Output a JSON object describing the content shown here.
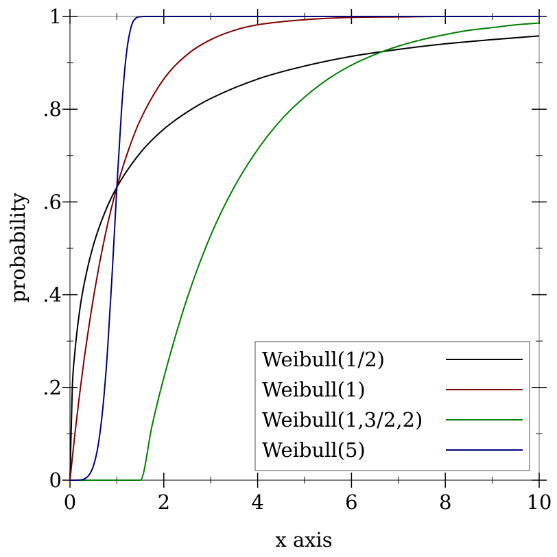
{
  "chart_data": {
    "type": "line",
    "title": "",
    "xlabel": "x axis",
    "ylabel": "probability",
    "xlim": [
      0,
      10
    ],
    "ylim": [
      0,
      1
    ],
    "grid": false,
    "legend_position": "bottom-right",
    "x_ticks": [
      {
        "value": 0,
        "label": "0"
      },
      {
        "value": 2,
        "label": "2"
      },
      {
        "value": 4,
        "label": "4"
      },
      {
        "value": 6,
        "label": "6"
      },
      {
        "value": 8,
        "label": "8"
      },
      {
        "value": 10,
        "label": "10"
      }
    ],
    "y_ticks": [
      {
        "value": 0,
        "label": "0"
      },
      {
        "value": 0.2,
        "label": ".2"
      },
      {
        "value": 0.4,
        "label": ".4"
      },
      {
        "value": 0.6,
        "label": ".6"
      },
      {
        "value": 0.8,
        "label": ".8"
      },
      {
        "value": 1,
        "label": "1"
      }
    ],
    "series": [
      {
        "name": "Weibull(1/2)",
        "color": "#000000",
        "x": [
          0,
          0.05,
          0.1,
          0.2,
          0.3,
          0.5,
          0.75,
          1,
          1.5,
          2,
          2.5,
          3,
          4,
          5,
          6,
          7,
          8,
          9,
          10
        ],
        "y": [
          0,
          0.2,
          0.271,
          0.361,
          0.422,
          0.507,
          0.579,
          0.632,
          0.706,
          0.757,
          0.794,
          0.823,
          0.865,
          0.893,
          0.914,
          0.929,
          0.941,
          0.95,
          0.958
        ]
      },
      {
        "name": "Weibull(1)",
        "color": "#7f0000",
        "x": [
          0,
          0.1,
          0.2,
          0.3,
          0.5,
          0.75,
          1,
          1.25,
          1.5,
          2,
          2.5,
          3,
          3.5,
          4,
          5,
          6,
          7,
          8,
          10
        ],
        "y": [
          0,
          0.095,
          0.181,
          0.259,
          0.393,
          0.528,
          0.632,
          0.713,
          0.777,
          0.865,
          0.918,
          0.95,
          0.97,
          0.982,
          0.993,
          0.998,
          0.999,
          1.0,
          1.0
        ]
      },
      {
        "name": "Weibull(1,3/2,2)",
        "color": "#007f00",
        "x": [
          0,
          1.5,
          1.75,
          2,
          2.5,
          3,
          3.5,
          4,
          4.5,
          5,
          5.5,
          6,
          6.5,
          7,
          7.5,
          8,
          8.5,
          9,
          9.5,
          10
        ],
        "y": [
          0,
          0,
          0.118,
          0.221,
          0.393,
          0.528,
          0.632,
          0.713,
          0.777,
          0.826,
          0.865,
          0.895,
          0.918,
          0.936,
          0.95,
          0.961,
          0.97,
          0.976,
          0.982,
          0.986
        ]
      },
      {
        "name": "Weibull(5)",
        "color": "#00007f",
        "x": [
          0,
          0.2,
          0.3,
          0.4,
          0.5,
          0.6,
          0.7,
          0.8,
          0.9,
          1.0,
          1.1,
          1.2,
          1.3,
          1.4,
          1.5,
          1.6,
          2,
          4,
          6,
          8,
          10
        ],
        "y": [
          0,
          0.0003,
          0.0024,
          0.0102,
          0.0308,
          0.0748,
          0.155,
          0.279,
          0.447,
          0.632,
          0.8,
          0.917,
          0.976,
          0.996,
          0.9995,
          1.0,
          1.0,
          1.0,
          1.0,
          1.0,
          1.0
        ]
      }
    ]
  }
}
